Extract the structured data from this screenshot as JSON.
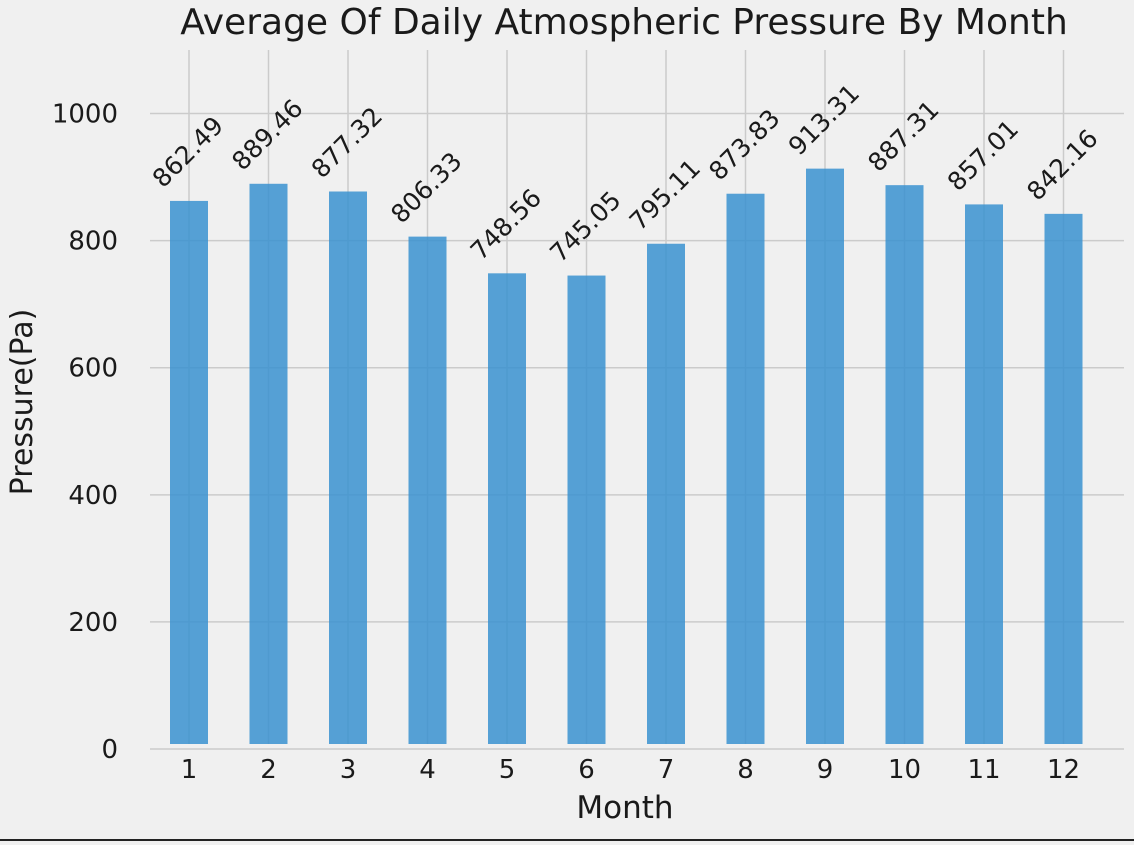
{
  "chart_data": {
    "type": "bar",
    "title": "Average Of Daily Atmospheric Pressure By Month",
    "xlabel": "Month",
    "ylabel": "Pressure(Pa)",
    "categories": [
      "1",
      "2",
      "3",
      "4",
      "5",
      "6",
      "7",
      "8",
      "9",
      "10",
      "11",
      "12"
    ],
    "values": [
      862.49,
      889.46,
      877.32,
      806.33,
      748.56,
      745.05,
      795.11,
      873.83,
      913.31,
      887.31,
      857.01,
      842.16
    ],
    "data_labels": [
      "862.49",
      "889.46",
      "877.32",
      "806.33",
      "748.56",
      "745.05",
      "795.11",
      "873.83",
      "913.31",
      "887.31",
      "857.01",
      "842.16"
    ],
    "ylim": [
      0,
      1100
    ],
    "yticks": [
      0,
      200,
      400,
      600,
      800,
      1000
    ],
    "ytick_labels": [
      "0",
      "200",
      "400",
      "600",
      "800",
      "1000"
    ],
    "grid": true,
    "legend": "none",
    "bar_color": "#3a92d0",
    "background_color": "#f0f0f0",
    "grid_color": "#cbcbcb"
  }
}
